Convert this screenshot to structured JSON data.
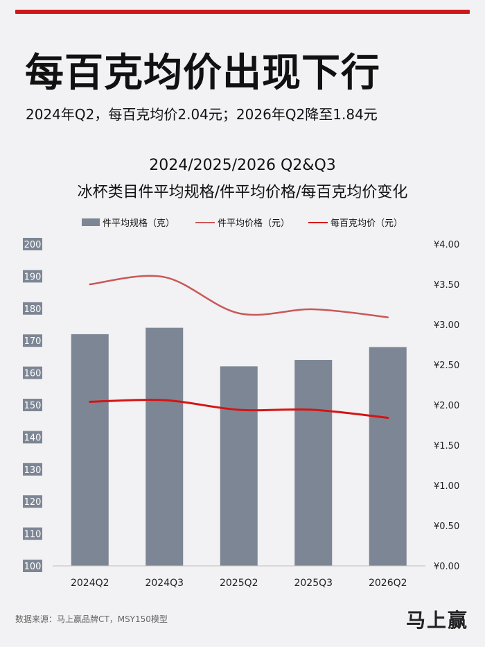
{
  "headline": "每百克均价出现下行",
  "subheadline": "2024年Q2，每百克均价2.04元；2026年Q2降至1.84元",
  "chart_data": {
    "type": "bar",
    "title": "2024/2025/2026 Q2&Q3",
    "subtitle": "冰杯类目件平均规格/件平均价格/每百克均价变化",
    "categories": [
      "2024Q2",
      "2024Q3",
      "2025Q2",
      "2025Q3",
      "2026Q2"
    ],
    "series": [
      {
        "name": "件平均规格（克）",
        "kind": "bar",
        "axis": "left",
        "color": "#7d8694",
        "values": [
          172,
          174,
          162,
          164,
          168
        ]
      },
      {
        "name": "件平均价格（元）",
        "kind": "line",
        "axis": "right",
        "color": "#c85858",
        "values": [
          3.5,
          3.59,
          3.14,
          3.19,
          3.09
        ]
      },
      {
        "name": "每百克均价（元）",
        "kind": "line",
        "axis": "right",
        "color": "#d41414",
        "values": [
          2.04,
          2.06,
          1.94,
          1.94,
          1.84
        ]
      }
    ],
    "left_axis": {
      "ylim": [
        100,
        200
      ],
      "ticks": [
        "200",
        "190",
        "180",
        "170",
        "160",
        "150",
        "140",
        "130",
        "120",
        "110",
        "100"
      ]
    },
    "right_axis": {
      "ylim": [
        0,
        4
      ],
      "ticks": [
        "¥4.00",
        "¥3.50",
        "¥3.00",
        "¥2.50",
        "¥2.00",
        "¥1.50",
        "¥1.00",
        "¥0.50",
        "¥0.00"
      ]
    },
    "grid": false,
    "legend_position": "top"
  },
  "footer": {
    "source": "数据来源：马上赢品牌CT，MSY150模型",
    "logo": "马上赢"
  }
}
